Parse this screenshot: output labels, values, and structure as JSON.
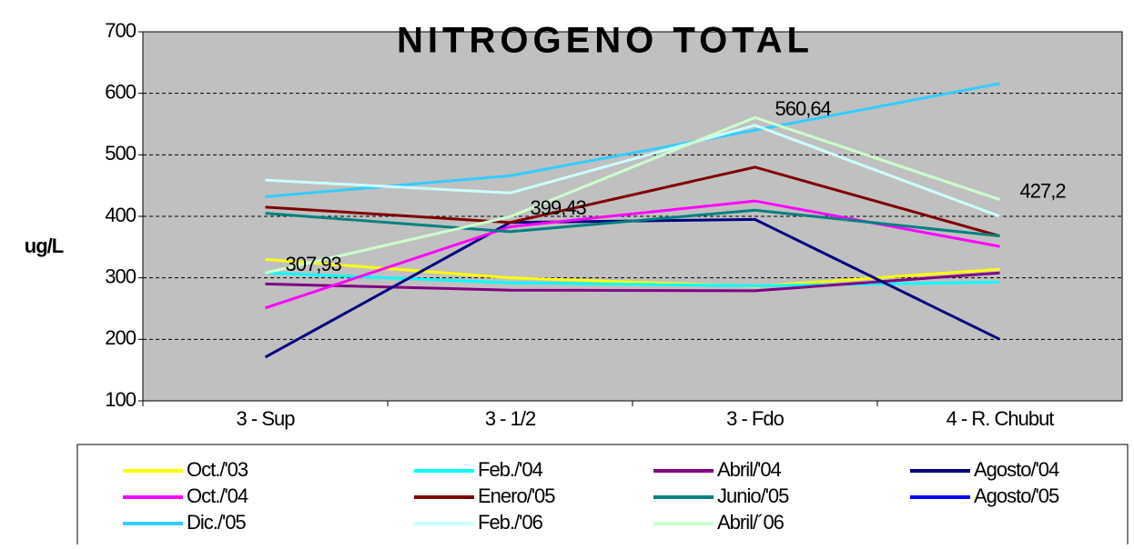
{
  "chart_data": {
    "type": "line",
    "title": "NITROGENO   TOTAL",
    "y_label": "ug/L",
    "categories": [
      "3 - Sup",
      "3 - 1/2",
      "3 - Fdo",
      "4 - R. Chubut"
    ],
    "ylim": [
      100,
      700
    ],
    "yticks": [
      100,
      200,
      300,
      400,
      500,
      600,
      700
    ],
    "grid": true,
    "series": [
      {
        "name": "Oct./'03",
        "color": "#ffff00",
        "values": [
          330,
          300,
          286,
          314
        ]
      },
      {
        "name": "Feb./'04",
        "color": "#00ffff",
        "values": [
          308,
          292,
          287,
          293
        ]
      },
      {
        "name": "Abril/'04",
        "color": "#800080",
        "values": [
          290,
          280,
          279,
          308
        ]
      },
      {
        "name": "Agosto/'04",
        "color": "#000080",
        "values": [
          171,
          390,
          395,
          200
        ]
      },
      {
        "name": "Oct./'04",
        "color": "#ff00ff",
        "values": [
          251,
          383,
          425,
          351
        ]
      },
      {
        "name": "Enero/'05",
        "color": "#800000",
        "values": [
          415,
          390,
          480,
          368
        ]
      },
      {
        "name": "Junio/'05",
        "color": "#008080",
        "values": [
          405,
          375,
          410,
          368
        ]
      },
      {
        "name": "Agosto/'05",
        "color": "#0000ff",
        "values": [
          null,
          null,
          null,
          null
        ]
      },
      {
        "name": "Dic./'05",
        "color": "#33ccff",
        "values": [
          432,
          466,
          540,
          616
        ]
      },
      {
        "name": "Feb./'06",
        "color": "#ccffff",
        "values": [
          459,
          438,
          548,
          400
        ]
      },
      {
        "name": "Abril/´06",
        "color": "#ccffcc",
        "values": [
          307.93,
          399.43,
          560.64,
          427.2
        ],
        "value_labels": [
          "307,93",
          "399,43",
          "560,64",
          "427,2"
        ]
      }
    ]
  }
}
